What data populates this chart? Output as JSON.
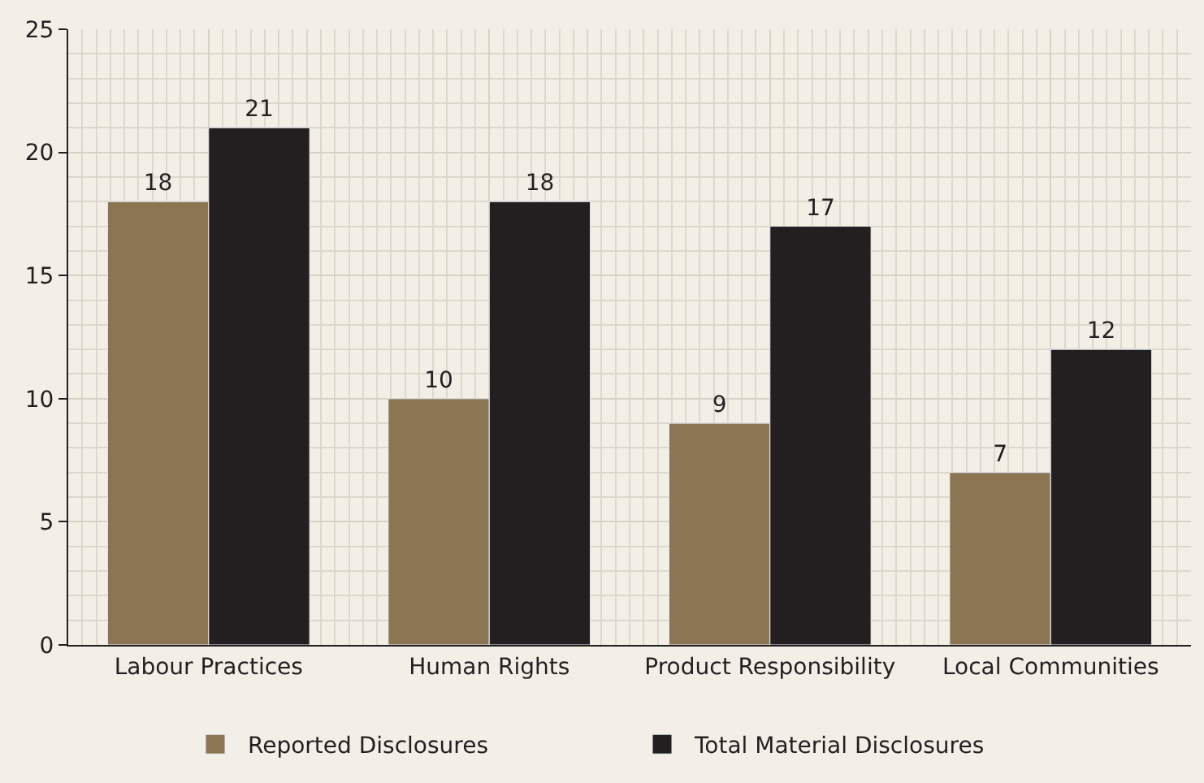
{
  "chart_data": {
    "type": "bar",
    "categories": [
      "Labour Practices",
      "Human Rights",
      "Product Responsibility",
      "Local Communities"
    ],
    "series": [
      {
        "name": "Reported Disclosures",
        "color": "#8b7553",
        "values": [
          18,
          10,
          9,
          7
        ]
      },
      {
        "name": "Total Material Disclosures",
        "color": "#231f20",
        "values": [
          21,
          18,
          17,
          12
        ]
      }
    ],
    "ylim": [
      0,
      25
    ],
    "yticks": [
      0,
      5,
      10,
      15,
      20,
      25
    ],
    "grid": true,
    "legend": "bottom",
    "data_labels": true
  }
}
